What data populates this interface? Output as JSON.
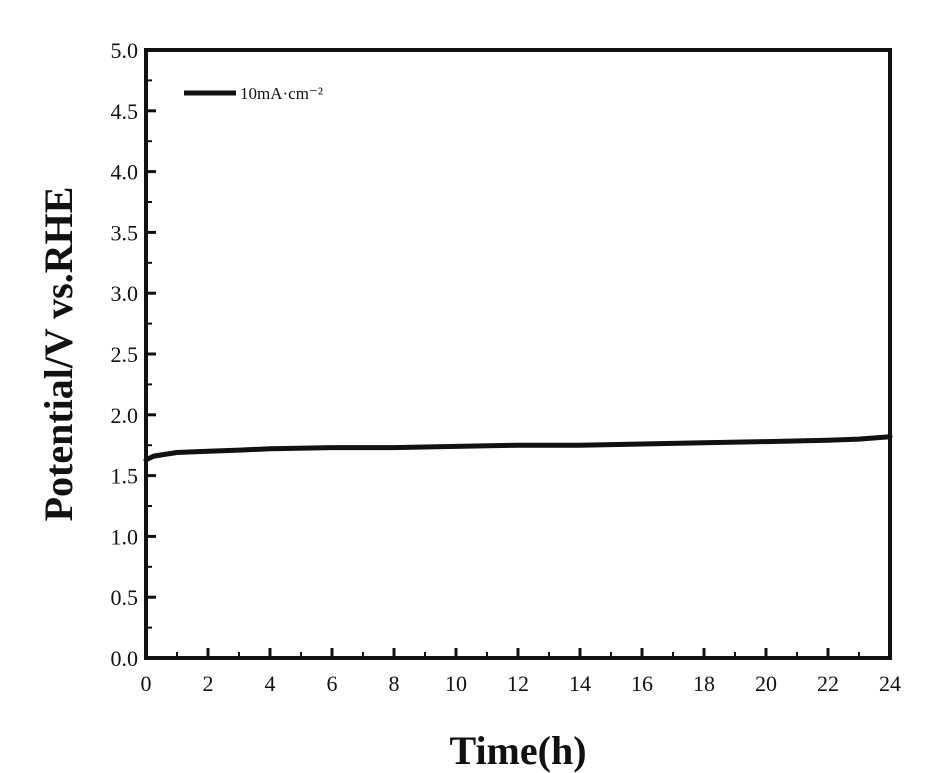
{
  "chart_data": {
    "type": "line",
    "title": "",
    "xlabel": "Time(h)",
    "ylabel": "Potential/V vs.RHE",
    "xlim": [
      0,
      24
    ],
    "ylim": [
      0.0,
      5.0
    ],
    "x_ticks": [
      0,
      2,
      4,
      6,
      8,
      10,
      12,
      14,
      16,
      18,
      20,
      22,
      24
    ],
    "x_tick_labels": [
      "0",
      "2",
      "4",
      "6",
      "8",
      "10",
      "12",
      "14",
      "16",
      "18",
      "20",
      "22",
      "24"
    ],
    "y_ticks": [
      0.0,
      0.5,
      1.0,
      1.5,
      2.0,
      2.5,
      3.0,
      3.5,
      4.0,
      4.5,
      5.0
    ],
    "y_tick_labels": [
      "0.0",
      "0.5",
      "1.0",
      "1.5",
      "2.0",
      "2.5",
      "3.0",
      "3.5",
      "4.0",
      "4.5",
      "5.0"
    ],
    "grid": false,
    "legend": {
      "position": "top-left"
    },
    "series": [
      {
        "name": "10mA·cm⁻²",
        "color": "#111111",
        "x": [
          0,
          0.25,
          0.5,
          1,
          2,
          3,
          4,
          6,
          8,
          10,
          12,
          14,
          16,
          18,
          20,
          22,
          23,
          24
        ],
        "y": [
          1.63,
          1.66,
          1.67,
          1.69,
          1.7,
          1.71,
          1.72,
          1.73,
          1.73,
          1.74,
          1.75,
          1.75,
          1.76,
          1.77,
          1.78,
          1.79,
          1.8,
          1.82
        ]
      }
    ]
  }
}
